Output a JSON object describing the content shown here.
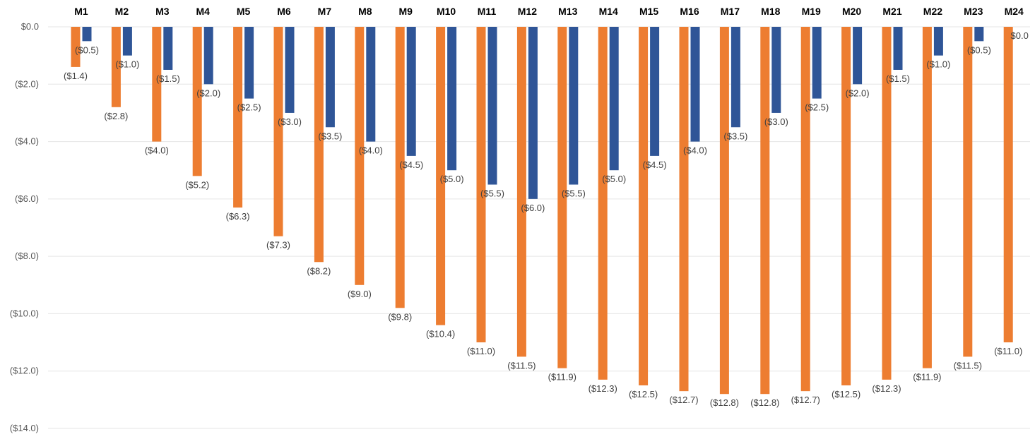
{
  "chart_data": {
    "type": "bar",
    "title": "",
    "xlabel": "",
    "ylabel": "",
    "categories": [
      "M1",
      "M2",
      "M3",
      "M4",
      "M5",
      "M6",
      "M7",
      "M8",
      "M9",
      "M10",
      "M11",
      "M12",
      "M13",
      "M14",
      "M15",
      "M16",
      "M17",
      "M18",
      "M19",
      "M20",
      "M21",
      "M22",
      "M23",
      "M24"
    ],
    "series": [
      {
        "color": "#ED7D31",
        "values": [
          -1.4,
          -2.8,
          -4.0,
          -5.2,
          -6.3,
          -7.3,
          -8.2,
          -9.0,
          -9.8,
          -10.4,
          -11.0,
          -11.5,
          -11.9,
          -12.3,
          -12.5,
          -12.7,
          -12.8,
          -12.8,
          -12.7,
          -12.5,
          -12.3,
          -11.9,
          -11.5,
          -11.0
        ],
        "labels": [
          "($1.4)",
          "($2.8)",
          "($4.0)",
          "($5.2)",
          "($6.3)",
          "($7.3)",
          "($8.2)",
          "($9.0)",
          "($9.8)",
          "($10.4)",
          "($11.0)",
          "($11.5)",
          "($11.9)",
          "($12.3)",
          "($12.5)",
          "($12.7)",
          "($12.8)",
          "($12.8)",
          "($12.7)",
          "($12.5)",
          "($12.3)",
          "($11.9)",
          "($11.5)",
          "($11.0)"
        ]
      },
      {
        "color": "#2F5597",
        "values": [
          -0.5,
          -1.0,
          -1.5,
          -2.0,
          -2.5,
          -3.0,
          -3.5,
          -4.0,
          -4.5,
          -5.0,
          -5.5,
          -6.0,
          -5.5,
          -5.0,
          -4.5,
          -4.0,
          -3.5,
          -3.0,
          -2.5,
          -2.0,
          -1.5,
          -1.0,
          -0.5,
          0.0
        ],
        "labels": [
          "($0.5)",
          "($1.0)",
          "($1.5)",
          "($2.0)",
          "($2.5)",
          "($3.0)",
          "($3.5)",
          "($4.0)",
          "($4.5)",
          "($5.0)",
          "($5.5)",
          "($6.0)",
          "($5.5)",
          "($5.0)",
          "($4.5)",
          "($4.0)",
          "($3.5)",
          "($3.0)",
          "($2.5)",
          "($2.0)",
          "($1.5)",
          "($1.0)",
          "($0.5)",
          "$0.0"
        ]
      }
    ],
    "ylim": [
      -14.0,
      0.0
    ],
    "yticks": [
      0.0,
      -2.0,
      -4.0,
      -6.0,
      -8.0,
      -10.0,
      -12.0,
      -14.0
    ],
    "ytick_labels": [
      "$0.0",
      "($2.0)",
      "($4.0)",
      "($6.0)",
      "($8.0)",
      "($10.0)",
      "($12.0)",
      "($14.0)"
    ],
    "grid": true,
    "legend": "none",
    "category_axis_position": "top"
  }
}
